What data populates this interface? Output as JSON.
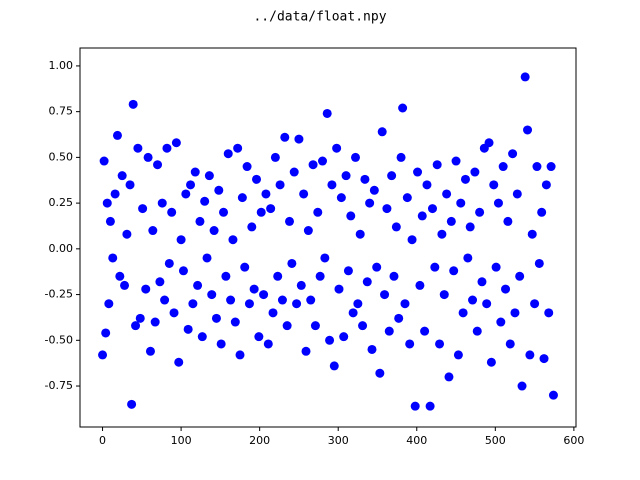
{
  "chart_data": {
    "type": "scatter",
    "title": "../data/float.npy",
    "color": "#0000ff",
    "xlim": [
      -28.7,
      602.7
    ],
    "ylim": [
      -0.974,
      1.098
    ],
    "xticks": [
      0,
      100,
      200,
      300,
      400,
      500,
      600
    ],
    "yticks": [
      {
        "value": -0.75,
        "label": "-0.75"
      },
      {
        "value": -0.5,
        "label": "-0.50"
      },
      {
        "value": -0.25,
        "label": "-0.25"
      },
      {
        "value": 0,
        "label": "0.00"
      },
      {
        "value": 0.25,
        "label": "0.25"
      },
      {
        "value": 0.5,
        "label": "0.50"
      },
      {
        "value": 0.75,
        "label": "0.75"
      },
      {
        "value": 1,
        "label": "1.00"
      }
    ],
    "x": [
      0,
      2,
      4,
      6,
      8,
      10,
      13,
      16,
      19,
      22,
      25,
      28,
      31,
      35,
      37,
      39,
      42,
      45,
      48,
      51,
      55,
      58,
      61,
      64,
      67,
      70,
      73,
      76,
      79,
      82,
      85,
      88,
      91,
      94,
      97,
      100,
      103,
      106,
      109,
      112,
      115,
      118,
      121,
      124,
      127,
      130,
      133,
      136,
      139,
      142,
      145,
      148,
      151,
      154,
      157,
      160,
      163,
      166,
      169,
      172,
      175,
      178,
      181,
      184,
      187,
      190,
      193,
      196,
      199,
      202,
      205,
      208,
      211,
      214,
      217,
      220,
      223,
      226,
      229,
      232,
      235,
      238,
      241,
      244,
      247,
      250,
      253,
      256,
      259,
      262,
      265,
      268,
      271,
      274,
      277,
      280,
      283,
      286,
      289,
      292,
      295,
      298,
      301,
      304,
      307,
      310,
      313,
      316,
      319,
      322,
      325,
      328,
      331,
      334,
      337,
      340,
      343,
      346,
      349,
      353,
      356,
      359,
      362,
      365,
      368,
      371,
      374,
      377,
      380,
      382,
      385,
      388,
      391,
      394,
      398,
      401,
      404,
      407,
      410,
      413,
      417,
      420,
      423,
      426,
      429,
      432,
      435,
      438,
      441,
      444,
      447,
      450,
      453,
      456,
      459,
      462,
      465,
      468,
      471,
      474,
      477,
      480,
      483,
      486,
      489,
      492,
      495,
      498,
      501,
      504,
      507,
      510,
      513,
      516,
      519,
      522,
      525,
      528,
      531,
      534,
      538,
      541,
      544,
      547,
      550,
      553,
      556,
      559,
      562,
      565,
      568,
      571,
      574
    ],
    "y": [
      -0.58,
      0.48,
      -0.46,
      0.25,
      -0.3,
      0.15,
      -0.05,
      0.3,
      0.62,
      -0.15,
      0.4,
      -0.2,
      0.08,
      0.35,
      -0.85,
      0.79,
      -0.42,
      0.55,
      -0.38,
      0.22,
      -0.22,
      0.5,
      -0.56,
      0.1,
      -0.4,
      0.46,
      -0.18,
      0.25,
      -0.28,
      0.55,
      -0.08,
      0.2,
      -0.35,
      0.58,
      -0.62,
      0.05,
      -0.12,
      0.3,
      -0.44,
      0.35,
      -0.3,
      0.42,
      -0.2,
      0.15,
      -0.48,
      0.26,
      -0.05,
      0.4,
      -0.25,
      0.1,
      -0.38,
      0.32,
      -0.52,
      0.2,
      -0.15,
      0.52,
      -0.28,
      0.05,
      -0.4,
      0.55,
      -0.58,
      0.28,
      -0.1,
      0.45,
      -0.3,
      0.12,
      -0.22,
      0.38,
      -0.48,
      0.2,
      -0.25,
      0.3,
      -0.52,
      0.22,
      -0.35,
      0.5,
      -0.15,
      0.35,
      -0.28,
      0.61,
      -0.42,
      0.15,
      -0.08,
      0.42,
      -0.3,
      0.6,
      -0.2,
      0.3,
      -0.56,
      0.1,
      -0.28,
      0.46,
      -0.42,
      0.2,
      -0.15,
      0.48,
      -0.05,
      0.74,
      -0.5,
      0.35,
      -0.64,
      0.55,
      -0.22,
      0.28,
      -0.48,
      0.4,
      -0.12,
      0.18,
      -0.35,
      0.5,
      -0.3,
      0.08,
      -0.42,
      0.38,
      -0.18,
      0.25,
      -0.55,
      0.32,
      -0.1,
      -0.68,
      0.64,
      -0.25,
      0.22,
      -0.45,
      0.4,
      -0.15,
      0.12,
      -0.38,
      0.5,
      0.77,
      -0.3,
      0.28,
      -0.52,
      0.05,
      -0.86,
      0.42,
      -0.2,
      0.18,
      -0.45,
      0.35,
      -0.86,
      0.22,
      -0.1,
      0.46,
      -0.52,
      0.08,
      -0.25,
      0.3,
      -0.7,
      0.15,
      -0.12,
      0.48,
      -0.58,
      0.25,
      -0.35,
      0.38,
      -0.05,
      0.12,
      -0.28,
      0.42,
      -0.45,
      0.2,
      -0.18,
      0.55,
      -0.3,
      0.58,
      -0.62,
      0.35,
      -0.1,
      0.25,
      -0.4,
      0.45,
      -0.22,
      0.15,
      -0.52,
      0.52,
      -0.35,
      0.3,
      -0.15,
      -0.75,
      0.94,
      0.65,
      -0.58,
      0.08,
      -0.3,
      0.45,
      -0.08,
      0.2,
      -0.6,
      0.35,
      -0.35,
      0.45,
      -0.8
    ]
  }
}
